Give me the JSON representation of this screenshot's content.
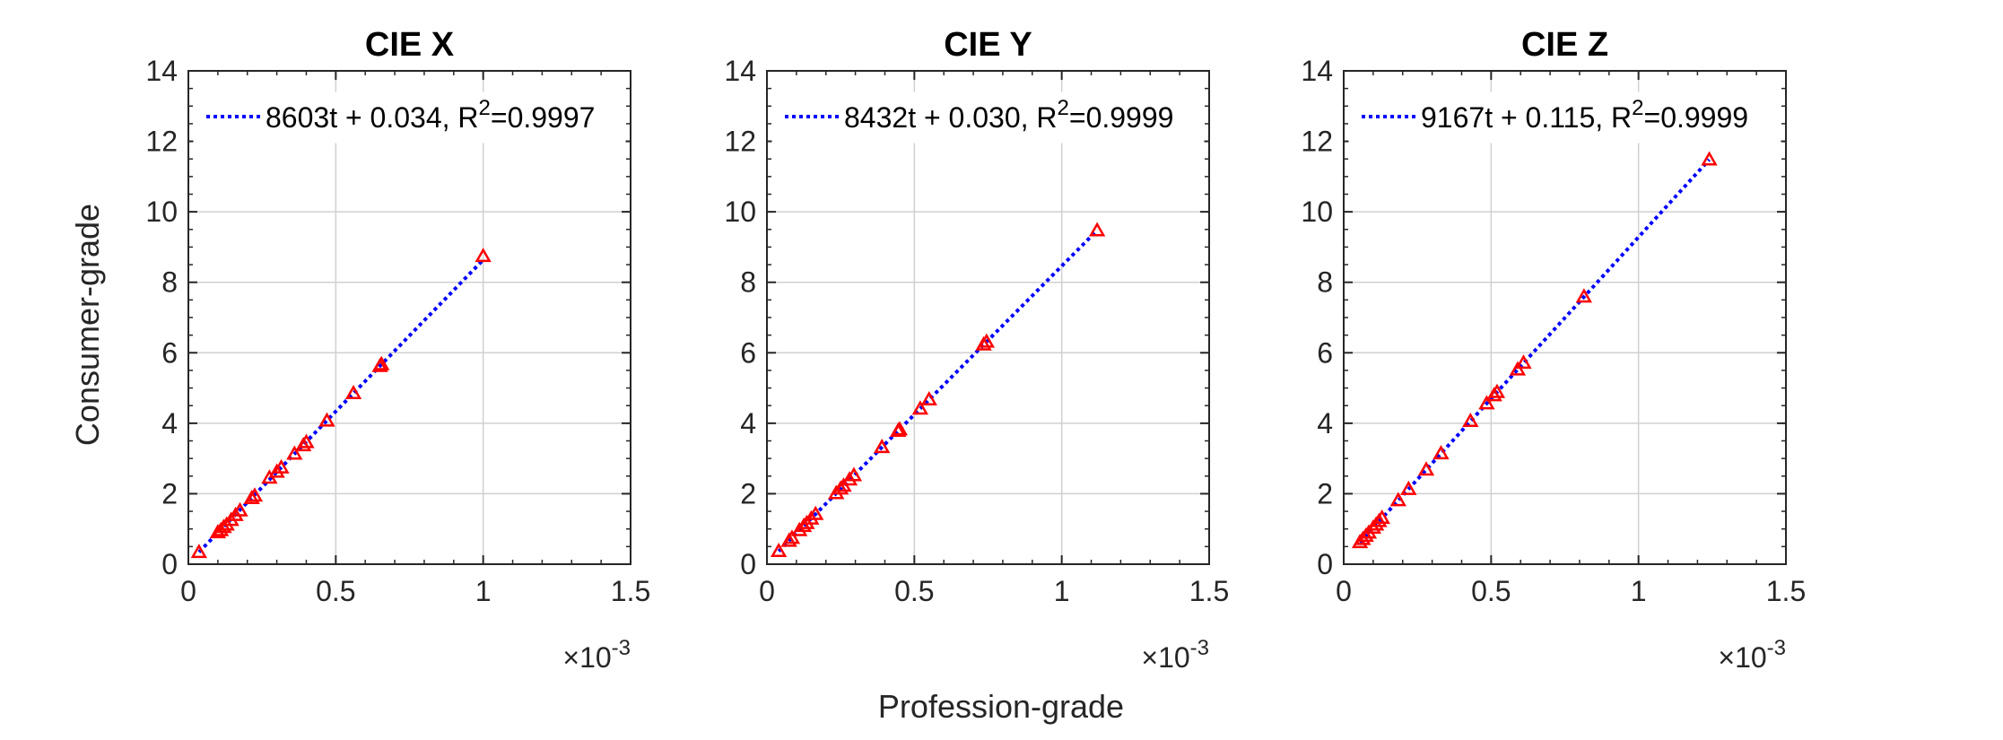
{
  "figure": {
    "ylabel": "Consumer-grade",
    "xlabel": "Profession-grade",
    "x_multiplier_base": "10",
    "x_multiplier_exp": "-3"
  },
  "colors": {
    "marker": "#ff0000",
    "fit_line": "#0000ff",
    "grid": "#d0d0d0",
    "axes": "#262626"
  },
  "chart_data": [
    {
      "type": "scatter",
      "title": "CIE X",
      "xlim": [
        0,
        1.5
      ],
      "ylim": [
        0,
        14
      ],
      "x_unit_scale": "1e-3",
      "xticks": [
        "0",
        "0.5",
        "1",
        "1.5"
      ],
      "yticks": [
        "0",
        "2",
        "4",
        "6",
        "8",
        "10",
        "12",
        "14"
      ],
      "grid": true,
      "legend_position": "top",
      "fit": {
        "slope": 8.603,
        "intercept": 0.034,
        "label_main": "8603t + 0.034, R",
        "label_sup": "2",
        "label_tail": "=0.9997"
      },
      "points": [
        [
          0.036,
          0.34
        ],
        [
          0.1,
          0.9
        ],
        [
          0.11,
          0.96
        ],
        [
          0.12,
          1.05
        ],
        [
          0.13,
          1.12
        ],
        [
          0.145,
          1.25
        ],
        [
          0.16,
          1.39
        ],
        [
          0.175,
          1.52
        ],
        [
          0.215,
          1.87
        ],
        [
          0.225,
          1.94
        ],
        [
          0.275,
          2.45
        ],
        [
          0.3,
          2.62
        ],
        [
          0.315,
          2.74
        ],
        [
          0.36,
          3.13
        ],
        [
          0.39,
          3.37
        ],
        [
          0.4,
          3.46
        ],
        [
          0.47,
          4.07
        ],
        [
          0.56,
          4.85
        ],
        [
          0.65,
          5.62
        ],
        [
          0.655,
          5.67
        ],
        [
          1.0,
          8.74
        ]
      ]
    },
    {
      "type": "scatter",
      "title": "CIE Y",
      "xlim": [
        0,
        1.5
      ],
      "ylim": [
        0,
        14
      ],
      "x_unit_scale": "1e-3",
      "xticks": [
        "0",
        "0.5",
        "1",
        "1.5"
      ],
      "yticks": [
        "0",
        "2",
        "4",
        "6",
        "8",
        "10",
        "12",
        "14"
      ],
      "grid": true,
      "legend_position": "top",
      "fit": {
        "slope": 8.432,
        "intercept": 0.03,
        "label_main": "8432t + 0.030, R",
        "label_sup": "2",
        "label_tail": "=0.9999"
      },
      "points": [
        [
          0.04,
          0.37
        ],
        [
          0.075,
          0.66
        ],
        [
          0.085,
          0.74
        ],
        [
          0.11,
          0.96
        ],
        [
          0.125,
          1.08
        ],
        [
          0.135,
          1.16
        ],
        [
          0.15,
          1.29
        ],
        [
          0.165,
          1.42
        ],
        [
          0.235,
          2.01
        ],
        [
          0.25,
          2.14
        ],
        [
          0.26,
          2.22
        ],
        [
          0.28,
          2.4
        ],
        [
          0.295,
          2.52
        ],
        [
          0.39,
          3.32
        ],
        [
          0.445,
          3.78
        ],
        [
          0.45,
          3.82
        ],
        [
          0.52,
          4.41
        ],
        [
          0.55,
          4.67
        ],
        [
          0.735,
          6.23
        ],
        [
          0.745,
          6.31
        ],
        [
          1.12,
          9.47
        ]
      ]
    },
    {
      "type": "scatter",
      "title": "CIE Z",
      "xlim": [
        0,
        1.5
      ],
      "ylim": [
        0,
        14
      ],
      "x_unit_scale": "1e-3",
      "xticks": [
        "0",
        "0.5",
        "1",
        "1.5"
      ],
      "yticks": [
        "0",
        "2",
        "4",
        "6",
        "8",
        "10",
        "12",
        "14"
      ],
      "grid": true,
      "legend_position": "top",
      "fit": {
        "slope": 9.167,
        "intercept": 0.115,
        "label_main": "9167t + 0.115, R",
        "label_sup": "2",
        "label_tail": "=0.9999"
      },
      "points": [
        [
          0.055,
          0.62
        ],
        [
          0.065,
          0.71
        ],
        [
          0.075,
          0.8
        ],
        [
          0.085,
          0.89
        ],
        [
          0.1,
          1.03
        ],
        [
          0.11,
          1.12
        ],
        [
          0.12,
          1.22
        ],
        [
          0.13,
          1.31
        ],
        [
          0.185,
          1.81
        ],
        [
          0.22,
          2.13
        ],
        [
          0.28,
          2.68
        ],
        [
          0.33,
          3.14
        ],
        [
          0.43,
          4.06
        ],
        [
          0.485,
          4.56
        ],
        [
          0.51,
          4.79
        ],
        [
          0.52,
          4.88
        ],
        [
          0.59,
          5.52
        ],
        [
          0.61,
          5.71
        ],
        [
          0.815,
          7.59
        ],
        [
          1.24,
          11.48
        ]
      ]
    }
  ]
}
